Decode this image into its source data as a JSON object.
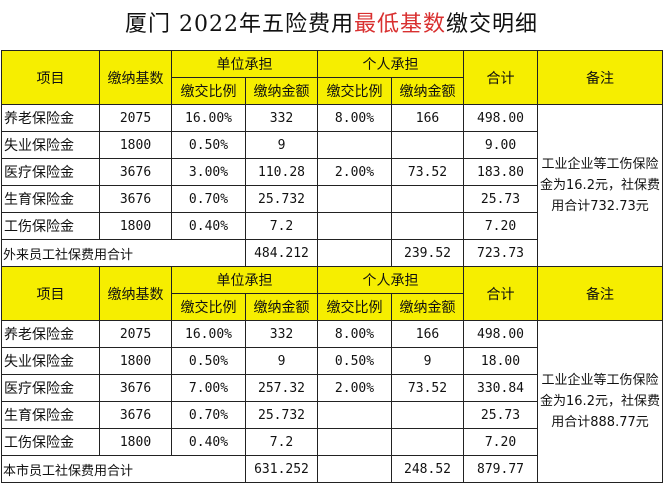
{
  "title": {
    "prefix": "厦门 2022年五险费用",
    "accent": "最低基数",
    "suffix": "缴交明细"
  },
  "header": {
    "item": "项目",
    "base": "缴纳基数",
    "employer": "单位承担",
    "personal": "个人承担",
    "total": "合计",
    "note": "备注",
    "rate": "缴交比例",
    "amount": "缴纳金额"
  },
  "section1": {
    "rows": [
      {
        "item": "养老保险金",
        "base": "2075",
        "e_rate": "16.00%",
        "e_amt": "332",
        "p_rate": "8.00%",
        "p_amt": "166",
        "total": "498.00"
      },
      {
        "item": "失业保险金",
        "base": "1800",
        "e_rate": "0.50%",
        "e_amt": "9",
        "p_rate": "",
        "p_amt": "",
        "total": "9.00"
      },
      {
        "item": "医疗保险金",
        "base": "3676",
        "e_rate": "3.00%",
        "e_amt": "110.28",
        "p_rate": "2.00%",
        "p_amt": "73.52",
        "total": "183.80"
      },
      {
        "item": "生育保险金",
        "base": "3676",
        "e_rate": "0.70%",
        "e_amt": "25.732",
        "p_rate": "",
        "p_amt": "",
        "total": "25.73"
      },
      {
        "item": "工伤保险金",
        "base": "1800",
        "e_rate": "0.40%",
        "e_amt": "7.2",
        "p_rate": "",
        "p_amt": "",
        "total": "7.20"
      }
    ],
    "note": "工业企业等工伤保险金为16.2元，社保费用合计732.73元",
    "total_label": "外来员工社保费用合计",
    "total_employer": "484.212",
    "total_personal": "239.52",
    "total_all": "723.73"
  },
  "section2": {
    "rows": [
      {
        "item": "养老保险金",
        "base": "2075",
        "e_rate": "16.00%",
        "e_amt": "332",
        "p_rate": "8.00%",
        "p_amt": "166",
        "total": "498.00"
      },
      {
        "item": "失业保险金",
        "base": "1800",
        "e_rate": "0.50%",
        "e_amt": "9",
        "p_rate": "0.50%",
        "p_amt": "9",
        "total": "18.00"
      },
      {
        "item": "医疗保险金",
        "base": "3676",
        "e_rate": "7.00%",
        "e_amt": "257.32",
        "p_rate": "2.00%",
        "p_amt": "73.52",
        "total": "330.84"
      },
      {
        "item": "生育保险金",
        "base": "3676",
        "e_rate": "0.70%",
        "e_amt": "25.732",
        "p_rate": "",
        "p_amt": "",
        "total": "25.73"
      },
      {
        "item": "工伤保险金",
        "base": "1800",
        "e_rate": "0.40%",
        "e_amt": "7.2",
        "p_rate": "",
        "p_amt": "",
        "total": "7.20"
      }
    ],
    "note": "工业企业等工伤保险金为16.2元，社保费用合计888.77元",
    "total_label": "本市员工社保费用合计",
    "total_employer": "631.252",
    "total_personal": "248.52",
    "total_all": "879.77"
  },
  "colors": {
    "header_bg": "#f6ee00",
    "title_accent": "#d93030"
  }
}
